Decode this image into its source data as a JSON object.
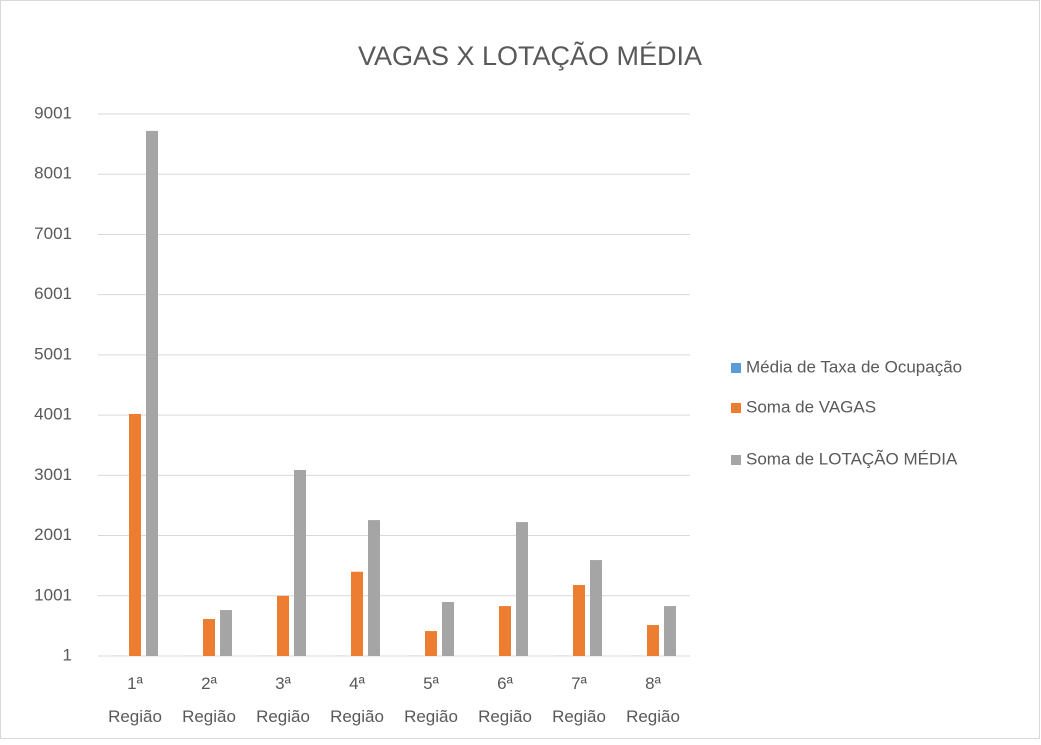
{
  "chart_data": {
    "type": "bar",
    "title": "VAGAS X LOTAÇÃO MÉDIA",
    "categories": [
      "1ª Região",
      "2ª Região",
      "3ª Região",
      "4ª Região",
      "5ª Região",
      "6ª Região",
      "7ª Região",
      "8ª Região"
    ],
    "series": [
      {
        "name": "Média de Taxa de Ocupação",
        "color": "#5b9bd5",
        "values": [
          2,
          2,
          2,
          2,
          2,
          2,
          2,
          2
        ]
      },
      {
        "name": "Soma de VAGAS",
        "color": "#ed7d31",
        "values": [
          4020,
          615,
          1000,
          1400,
          415,
          830,
          1180,
          515
        ]
      },
      {
        "name": "Soma de LOTAÇÃO MÉDIA",
        "color": "#a5a5a5",
        "values": [
          8720,
          764,
          3090,
          2258,
          897,
          2225,
          1594,
          830
        ]
      }
    ],
    "ylim": [
      1,
      9001
    ],
    "yticks": [
      1,
      1001,
      2001,
      3001,
      4001,
      5001,
      6001,
      7001,
      8001,
      9001
    ],
    "grid": true,
    "legend": "right"
  }
}
